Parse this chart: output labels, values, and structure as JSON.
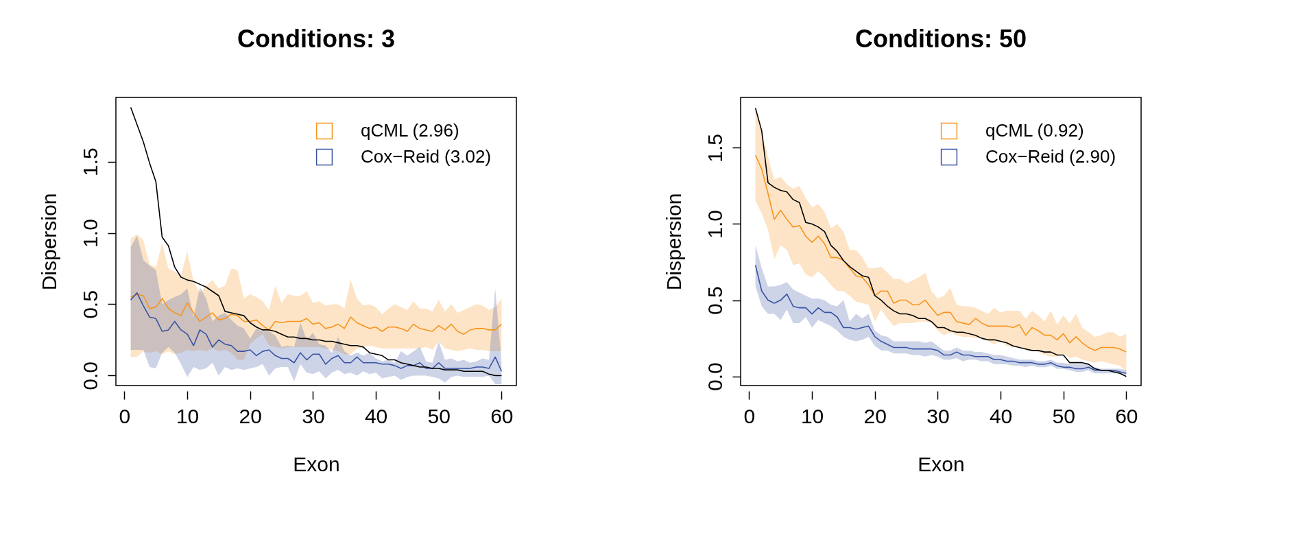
{
  "chart_data": [
    {
      "type": "line",
      "title": "Conditions: 3",
      "xlabel": "Exon",
      "ylabel": "Dispersion",
      "x": [
        1,
        2,
        3,
        4,
        5,
        6,
        7,
        8,
        9,
        10,
        11,
        12,
        13,
        14,
        15,
        16,
        17,
        18,
        19,
        20,
        21,
        22,
        23,
        24,
        25,
        26,
        27,
        28,
        29,
        30,
        31,
        32,
        33,
        34,
        35,
        36,
        37,
        38,
        39,
        40,
        41,
        42,
        43,
        44,
        45,
        46,
        47,
        48,
        49,
        50,
        51,
        52,
        53,
        54,
        55,
        56,
        57,
        58,
        59,
        60
      ],
      "xlim": [
        -1.36,
        62.36
      ],
      "xticks": [
        0,
        10,
        20,
        30,
        40,
        50,
        60
      ],
      "ylim": [
        -0.07,
        1.95
      ],
      "yticks": [
        {
          "value": 0,
          "label": "0.0"
        },
        {
          "value": 0.5,
          "label": "0.5"
        },
        {
          "value": 1,
          "label": "1.0"
        },
        {
          "value": 1.5,
          "label": "1.5"
        }
      ],
      "legend": "top right",
      "series": [
        {
          "name": "qCML (2.96)",
          "color": "#f7941d",
          "values": [
            0.55,
            0.57,
            0.56,
            0.47,
            0.48,
            0.54,
            0.47,
            0.44,
            0.42,
            0.51,
            0.44,
            0.38,
            0.41,
            0.44,
            0.39,
            0.4,
            0.43,
            0.42,
            0.38,
            0.38,
            0.39,
            0.35,
            0.32,
            0.38,
            0.37,
            0.38,
            0.38,
            0.38,
            0.4,
            0.36,
            0.37,
            0.33,
            0.34,
            0.36,
            0.33,
            0.41,
            0.37,
            0.35,
            0.33,
            0.34,
            0.31,
            0.34,
            0.34,
            0.33,
            0.31,
            0.36,
            0.33,
            0.32,
            0.31,
            0.35,
            0.32,
            0.36,
            0.31,
            0.29,
            0.32,
            0.33,
            0.33,
            0.32,
            0.32,
            0.36
          ],
          "lower": [
            0.13,
            0.13,
            0.17,
            0.16,
            0.17,
            0.15,
            0.17,
            0.15,
            0.16,
            0.18,
            0.17,
            0.18,
            0.17,
            0.19,
            0.17,
            0.18,
            0.16,
            0.11,
            0.11,
            0.22,
            0.26,
            0.29,
            0.21,
            0.2,
            0.19,
            0.2,
            0.2,
            0.2,
            0.2,
            0.2,
            0.2,
            0.19,
            0.18,
            0.17,
            0.15,
            0.15,
            0.19,
            0.2,
            0.21,
            0.2,
            0.19,
            0.19,
            0.19,
            0.19,
            0.19,
            0.19,
            0.19,
            0.2,
            0.18,
            0.24,
            0.19,
            0.18,
            0.17,
            0.18,
            0.19,
            0.18,
            0.18,
            0.17,
            0.17,
            0.17
          ],
          "upper": [
            0.96,
            0.99,
            0.95,
            0.78,
            0.76,
            0.93,
            0.75,
            0.73,
            0.7,
            0.87,
            0.66,
            0.58,
            0.63,
            0.67,
            0.61,
            0.63,
            0.75,
            0.74,
            0.54,
            0.57,
            0.55,
            0.52,
            0.46,
            0.63,
            0.51,
            0.57,
            0.56,
            0.56,
            0.59,
            0.51,
            0.52,
            0.49,
            0.5,
            0.5,
            0.47,
            0.67,
            0.54,
            0.49,
            0.5,
            0.48,
            0.43,
            0.47,
            0.5,
            0.48,
            0.46,
            0.52,
            0.47,
            0.47,
            0.45,
            0.53,
            0.45,
            0.5,
            0.44,
            0.46,
            0.48,
            0.5,
            0.49,
            0.46,
            0.48,
            0.54
          ]
        },
        {
          "name": "Cox−Reid (3.02)",
          "color": "#3953a4",
          "values": [
            0.53,
            0.58,
            0.49,
            0.41,
            0.4,
            0.31,
            0.32,
            0.38,
            0.32,
            0.29,
            0.21,
            0.32,
            0.29,
            0.2,
            0.25,
            0.22,
            0.21,
            0.17,
            0.17,
            0.18,
            0.14,
            0.17,
            0.18,
            0.14,
            0.12,
            0.12,
            0.09,
            0.16,
            0.11,
            0.15,
            0.15,
            0.08,
            0.12,
            0.14,
            0.09,
            0.09,
            0.13,
            0.09,
            0.09,
            0.09,
            0.08,
            0.08,
            0.07,
            0.05,
            0.07,
            0.07,
            0.09,
            0.05,
            0.05,
            0.09,
            0.05,
            0.05,
            0.05,
            0.05,
            0.05,
            0.06,
            0.06,
            0.05,
            0.13,
            0.03
          ],
          "lower": [
            0.18,
            0.18,
            0.18,
            0.06,
            0.05,
            0.16,
            0.2,
            0.16,
            0.08,
            -0.01,
            0.06,
            0.04,
            0.05,
            0.09,
            0.0,
            0.06,
            0.04,
            0.05,
            0.04,
            0.05,
            0.06,
            0.08,
            0.0,
            0.05,
            0.06,
            0.06,
            -0.04,
            0.08,
            0.02,
            0.01,
            0.03,
            -0.02,
            0.02,
            0.04,
            0.01,
            0.02,
            0.0,
            0.03,
            0.01,
            0.02,
            -0.02,
            -0.01,
            0.0,
            -0.03,
            -0.01,
            0.0,
            0.0,
            0.0,
            -0.01,
            -0.02,
            -0.05,
            -0.01,
            0.0,
            -0.01,
            -0.01,
            -0.01,
            -0.01,
            0.0,
            -0.06,
            -0.06
          ],
          "upper": [
            0.9,
            0.98,
            0.81,
            0.77,
            0.74,
            0.5,
            0.53,
            0.55,
            0.57,
            0.61,
            0.41,
            0.62,
            0.54,
            0.38,
            0.42,
            0.44,
            0.39,
            0.35,
            0.33,
            0.26,
            0.33,
            0.31,
            0.31,
            0.28,
            0.2,
            0.21,
            0.2,
            0.37,
            0.25,
            0.3,
            0.22,
            0.21,
            0.16,
            0.27,
            0.17,
            0.14,
            0.16,
            0.14,
            0.16,
            0.12,
            0.1,
            0.11,
            0.09,
            0.17,
            0.14,
            0.17,
            0.2,
            0.1,
            0.09,
            0.24,
            0.11,
            0.12,
            0.1,
            0.11,
            0.09,
            0.1,
            0.12,
            0.11,
            0.61,
            0.09
          ]
        },
        {
          "color": "#000000",
          "values": [
            1.88,
            1.76,
            1.64,
            1.49,
            1.36,
            0.97,
            0.91,
            0.76,
            0.69,
            0.67,
            0.66,
            0.64,
            0.62,
            0.59,
            0.56,
            0.45,
            0.44,
            0.43,
            0.42,
            0.37,
            0.34,
            0.32,
            0.32,
            0.31,
            0.29,
            0.27,
            0.27,
            0.26,
            0.26,
            0.25,
            0.25,
            0.24,
            0.24,
            0.23,
            0.22,
            0.21,
            0.21,
            0.2,
            0.16,
            0.15,
            0.14,
            0.11,
            0.11,
            0.09,
            0.08,
            0.07,
            0.06,
            0.06,
            0.05,
            0.05,
            0.04,
            0.04,
            0.04,
            0.03,
            0.03,
            0.03,
            0.03,
            0.01,
            0.0,
            0.0
          ]
        }
      ]
    },
    {
      "type": "line",
      "title": "Conditions: 50",
      "xlabel": "Exon",
      "ylabel": "Dispersion",
      "x": [
        1,
        2,
        3,
        4,
        5,
        6,
        7,
        8,
        9,
        10,
        11,
        12,
        13,
        14,
        15,
        16,
        17,
        18,
        19,
        20,
        21,
        22,
        23,
        24,
        25,
        26,
        27,
        28,
        29,
        30,
        31,
        32,
        33,
        34,
        35,
        36,
        37,
        38,
        39,
        40,
        41,
        42,
        43,
        44,
        45,
        46,
        47,
        48,
        49,
        50,
        51,
        52,
        53,
        54,
        55,
        56,
        57,
        58,
        59,
        60
      ],
      "xlim": [
        -1.36,
        62.36
      ],
      "xticks": [
        0,
        10,
        20,
        30,
        40,
        50,
        60
      ],
      "ylim": [
        -0.06,
        1.83
      ],
      "yticks": [
        {
          "value": 0,
          "label": "0.0"
        },
        {
          "value": 0.5,
          "label": "0.5"
        },
        {
          "value": 1,
          "label": "1.0"
        },
        {
          "value": 1.5,
          "label": "1.5"
        }
      ],
      "legend": "top right",
      "series": [
        {
          "name": "qCML (0.92)",
          "color": "#f7941d",
          "values": [
            1.45,
            1.36,
            1.2,
            1.03,
            1.09,
            1.03,
            0.98,
            0.99,
            0.92,
            0.88,
            0.92,
            0.87,
            0.78,
            0.78,
            0.76,
            0.71,
            0.66,
            0.65,
            0.6,
            0.53,
            0.56,
            0.56,
            0.48,
            0.5,
            0.5,
            0.47,
            0.47,
            0.5,
            0.45,
            0.4,
            0.42,
            0.42,
            0.36,
            0.35,
            0.34,
            0.38,
            0.35,
            0.33,
            0.33,
            0.33,
            0.33,
            0.32,
            0.34,
            0.27,
            0.32,
            0.3,
            0.27,
            0.27,
            0.24,
            0.28,
            0.22,
            0.26,
            0.22,
            0.19,
            0.17,
            0.19,
            0.19,
            0.19,
            0.18,
            0.16
          ],
          "lower": [
            1.15,
            1.07,
            0.96,
            0.77,
            0.86,
            0.83,
            0.73,
            0.74,
            0.67,
            0.65,
            0.69,
            0.65,
            0.6,
            0.56,
            0.56,
            0.53,
            0.49,
            0.48,
            0.47,
            0.36,
            0.44,
            0.38,
            0.33,
            0.35,
            0.35,
            0.35,
            0.36,
            0.36,
            0.35,
            0.3,
            0.27,
            0.29,
            0.27,
            0.26,
            0.26,
            0.25,
            0.25,
            0.23,
            0.21,
            0.23,
            0.2,
            0.19,
            0.2,
            0.17,
            0.17,
            0.16,
            0.14,
            0.13,
            0.13,
            0.15,
            0.12,
            0.13,
            0.11,
            0.1,
            0.09,
            0.1,
            0.09,
            0.08,
            0.07,
            0.03
          ],
          "upper": [
            1.76,
            1.61,
            1.44,
            1.29,
            1.31,
            1.26,
            1.23,
            1.25,
            1.17,
            1.11,
            1.13,
            1.08,
            0.97,
            1.0,
            0.95,
            0.83,
            0.83,
            0.78,
            0.71,
            0.71,
            0.72,
            0.68,
            0.64,
            0.64,
            0.61,
            0.63,
            0.65,
            0.68,
            0.56,
            0.51,
            0.53,
            0.58,
            0.47,
            0.46,
            0.46,
            0.45,
            0.43,
            0.41,
            0.45,
            0.42,
            0.43,
            0.43,
            0.43,
            0.38,
            0.43,
            0.4,
            0.36,
            0.43,
            0.34,
            0.4,
            0.35,
            0.41,
            0.32,
            0.29,
            0.26,
            0.27,
            0.29,
            0.29,
            0.26,
            0.28
          ]
        },
        {
          "name": "Cox−Reid (2.90)",
          "color": "#3953a4",
          "values": [
            0.73,
            0.56,
            0.5,
            0.48,
            0.5,
            0.54,
            0.46,
            0.45,
            0.45,
            0.41,
            0.45,
            0.42,
            0.42,
            0.39,
            0.32,
            0.32,
            0.31,
            0.32,
            0.33,
            0.26,
            0.23,
            0.21,
            0.19,
            0.19,
            0.19,
            0.18,
            0.18,
            0.18,
            0.18,
            0.17,
            0.14,
            0.14,
            0.16,
            0.14,
            0.14,
            0.13,
            0.13,
            0.13,
            0.11,
            0.11,
            0.1,
            0.1,
            0.09,
            0.09,
            0.09,
            0.08,
            0.08,
            0.09,
            0.07,
            0.06,
            0.06,
            0.05,
            0.05,
            0.06,
            0.04,
            0.04,
            0.04,
            0.04,
            0.03,
            0.02
          ],
          "lower": [
            0.59,
            0.46,
            0.41,
            0.41,
            0.37,
            0.44,
            0.35,
            0.35,
            0.39,
            0.32,
            0.37,
            0.35,
            0.33,
            0.3,
            0.26,
            0.24,
            0.23,
            0.24,
            0.26,
            0.2,
            0.17,
            0.17,
            0.15,
            0.15,
            0.15,
            0.14,
            0.14,
            0.13,
            0.14,
            0.13,
            0.11,
            0.11,
            0.12,
            0.1,
            0.11,
            0.11,
            0.1,
            0.1,
            0.08,
            0.08,
            0.08,
            0.07,
            0.07,
            0.06,
            0.07,
            0.06,
            0.06,
            0.07,
            0.05,
            0.05,
            0.04,
            0.03,
            0.03,
            0.04,
            0.02,
            0.02,
            0.02,
            0.02,
            0.02,
            0.01
          ],
          "upper": [
            0.86,
            0.71,
            0.59,
            0.59,
            0.6,
            0.62,
            0.57,
            0.55,
            0.53,
            0.51,
            0.51,
            0.5,
            0.47,
            0.46,
            0.5,
            0.36,
            0.41,
            0.38,
            0.41,
            0.3,
            0.27,
            0.26,
            0.23,
            0.23,
            0.23,
            0.23,
            0.23,
            0.22,
            0.23,
            0.2,
            0.17,
            0.17,
            0.19,
            0.17,
            0.17,
            0.16,
            0.16,
            0.15,
            0.14,
            0.14,
            0.13,
            0.12,
            0.11,
            0.11,
            0.11,
            0.1,
            0.1,
            0.11,
            0.09,
            0.09,
            0.08,
            0.08,
            0.08,
            0.08,
            0.06,
            0.05,
            0.05,
            0.05,
            0.05,
            0.04
          ]
        },
        {
          "color": "#000000",
          "values": [
            1.76,
            1.61,
            1.27,
            1.24,
            1.22,
            1.21,
            1.16,
            1.14,
            1.01,
            1.0,
            0.98,
            0.95,
            0.86,
            0.82,
            0.76,
            0.72,
            0.69,
            0.66,
            0.65,
            0.53,
            0.5,
            0.46,
            0.43,
            0.41,
            0.41,
            0.4,
            0.38,
            0.38,
            0.36,
            0.32,
            0.32,
            0.3,
            0.29,
            0.29,
            0.28,
            0.27,
            0.25,
            0.24,
            0.24,
            0.23,
            0.22,
            0.2,
            0.19,
            0.18,
            0.17,
            0.17,
            0.16,
            0.16,
            0.14,
            0.14,
            0.09,
            0.09,
            0.09,
            0.08,
            0.05,
            0.04,
            0.04,
            0.03,
            0.02,
            0.0
          ]
        }
      ]
    }
  ]
}
